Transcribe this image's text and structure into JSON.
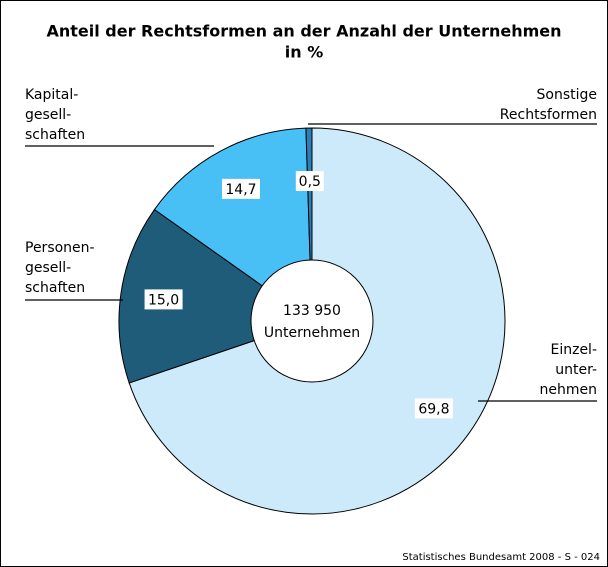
{
  "chart_data": {
    "type": "donut",
    "title": "Anteil der Rechtsformen an der Anzahl der Unternehmen",
    "subtitle": "in %",
    "categories": [
      [
        "Einzel-",
        "unter-",
        "nehmen"
      ],
      [
        "Personen-",
        "gesell-",
        "schaften"
      ],
      [
        "Kapital-",
        "gesell-",
        "schaften"
      ],
      [
        "Sonstige",
        "Rechtsformen"
      ]
    ],
    "values": [
      69.8,
      15.0,
      14.7,
      0.5
    ],
    "value_labels": [
      "69,8",
      "15,0",
      "14,7",
      "0,5"
    ],
    "colors": [
      "#cdeafb",
      "#1f5c7a",
      "#48c0f6",
      "#2a7fb8"
    ],
    "center_label": [
      "133 950",
      "Unternehmen"
    ],
    "source": "Statistisches Bundesamt 2008 - S - 024"
  }
}
